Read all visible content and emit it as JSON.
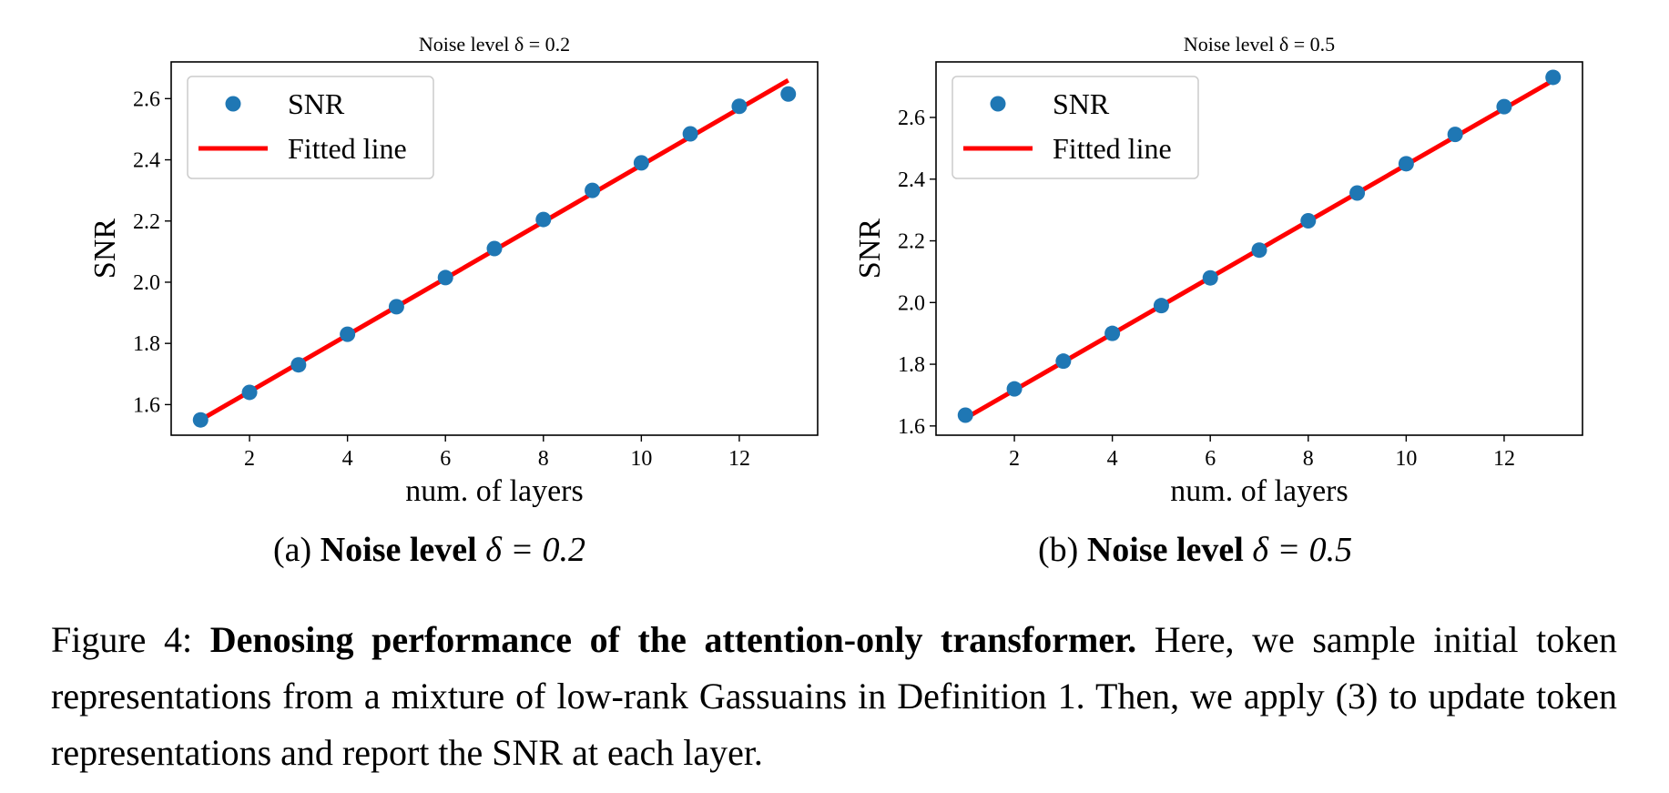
{
  "chart_data": [
    {
      "type": "scatter",
      "title": "Noise level δ = 0.2",
      "xlabel": "num. of layers",
      "ylabel": "SNR",
      "xlim": [
        0.4,
        13.6
      ],
      "ylim": [
        1.5,
        2.72
      ],
      "xticks": [
        2,
        4,
        6,
        8,
        10,
        12
      ],
      "yticks": [
        1.6,
        1.8,
        2.0,
        2.2,
        2.4,
        2.6
      ],
      "legend_position": "top-left",
      "series": [
        {
          "name": "SNR",
          "kind": "scatter",
          "color": "#1f77b4",
          "x": [
            1,
            2,
            3,
            4,
            5,
            6,
            7,
            8,
            9,
            10,
            11,
            12,
            13
          ],
          "y": [
            1.55,
            1.64,
            1.73,
            1.83,
            1.92,
            2.015,
            2.11,
            2.205,
            2.3,
            2.39,
            2.485,
            2.575,
            2.615
          ]
        },
        {
          "name": "Fitted line",
          "kind": "line",
          "color": "#ff0000",
          "x": [
            1,
            13
          ],
          "y": [
            1.55,
            2.66
          ]
        }
      ]
    },
    {
      "type": "scatter",
      "title": "Noise level δ = 0.5",
      "xlabel": "num. of layers",
      "ylabel": "SNR",
      "xlim": [
        0.4,
        13.6
      ],
      "ylim": [
        1.57,
        2.78
      ],
      "xticks": [
        2,
        4,
        6,
        8,
        10,
        12
      ],
      "yticks": [
        1.6,
        1.8,
        2.0,
        2.2,
        2.4,
        2.6
      ],
      "legend_position": "top-left",
      "series": [
        {
          "name": "SNR",
          "kind": "scatter",
          "color": "#1f77b4",
          "x": [
            1,
            2,
            3,
            4,
            5,
            6,
            7,
            8,
            9,
            10,
            11,
            12,
            13
          ],
          "y": [
            1.635,
            1.72,
            1.81,
            1.9,
            1.99,
            2.08,
            2.17,
            2.265,
            2.355,
            2.45,
            2.545,
            2.635,
            2.73
          ]
        },
        {
          "name": "Fitted line",
          "kind": "line",
          "color": "#ff0000",
          "x": [
            1,
            13
          ],
          "y": [
            1.625,
            2.72
          ]
        }
      ]
    }
  ],
  "subcaptions": [
    {
      "tag": "(a)",
      "bold": "Noise level",
      "math": "δ = 0.2"
    },
    {
      "tag": "(b)",
      "bold": "Noise level",
      "math": "δ = 0.5"
    }
  ],
  "caption": {
    "label": "Figure 4:",
    "bold": "Denosing performance of the attention-only transformer.",
    "text": "Here, we sample initial token representations from a mixture of low-rank Gassuains in Definition 1. Then, we apply (3) to update token representations and report the SNR at each layer."
  }
}
